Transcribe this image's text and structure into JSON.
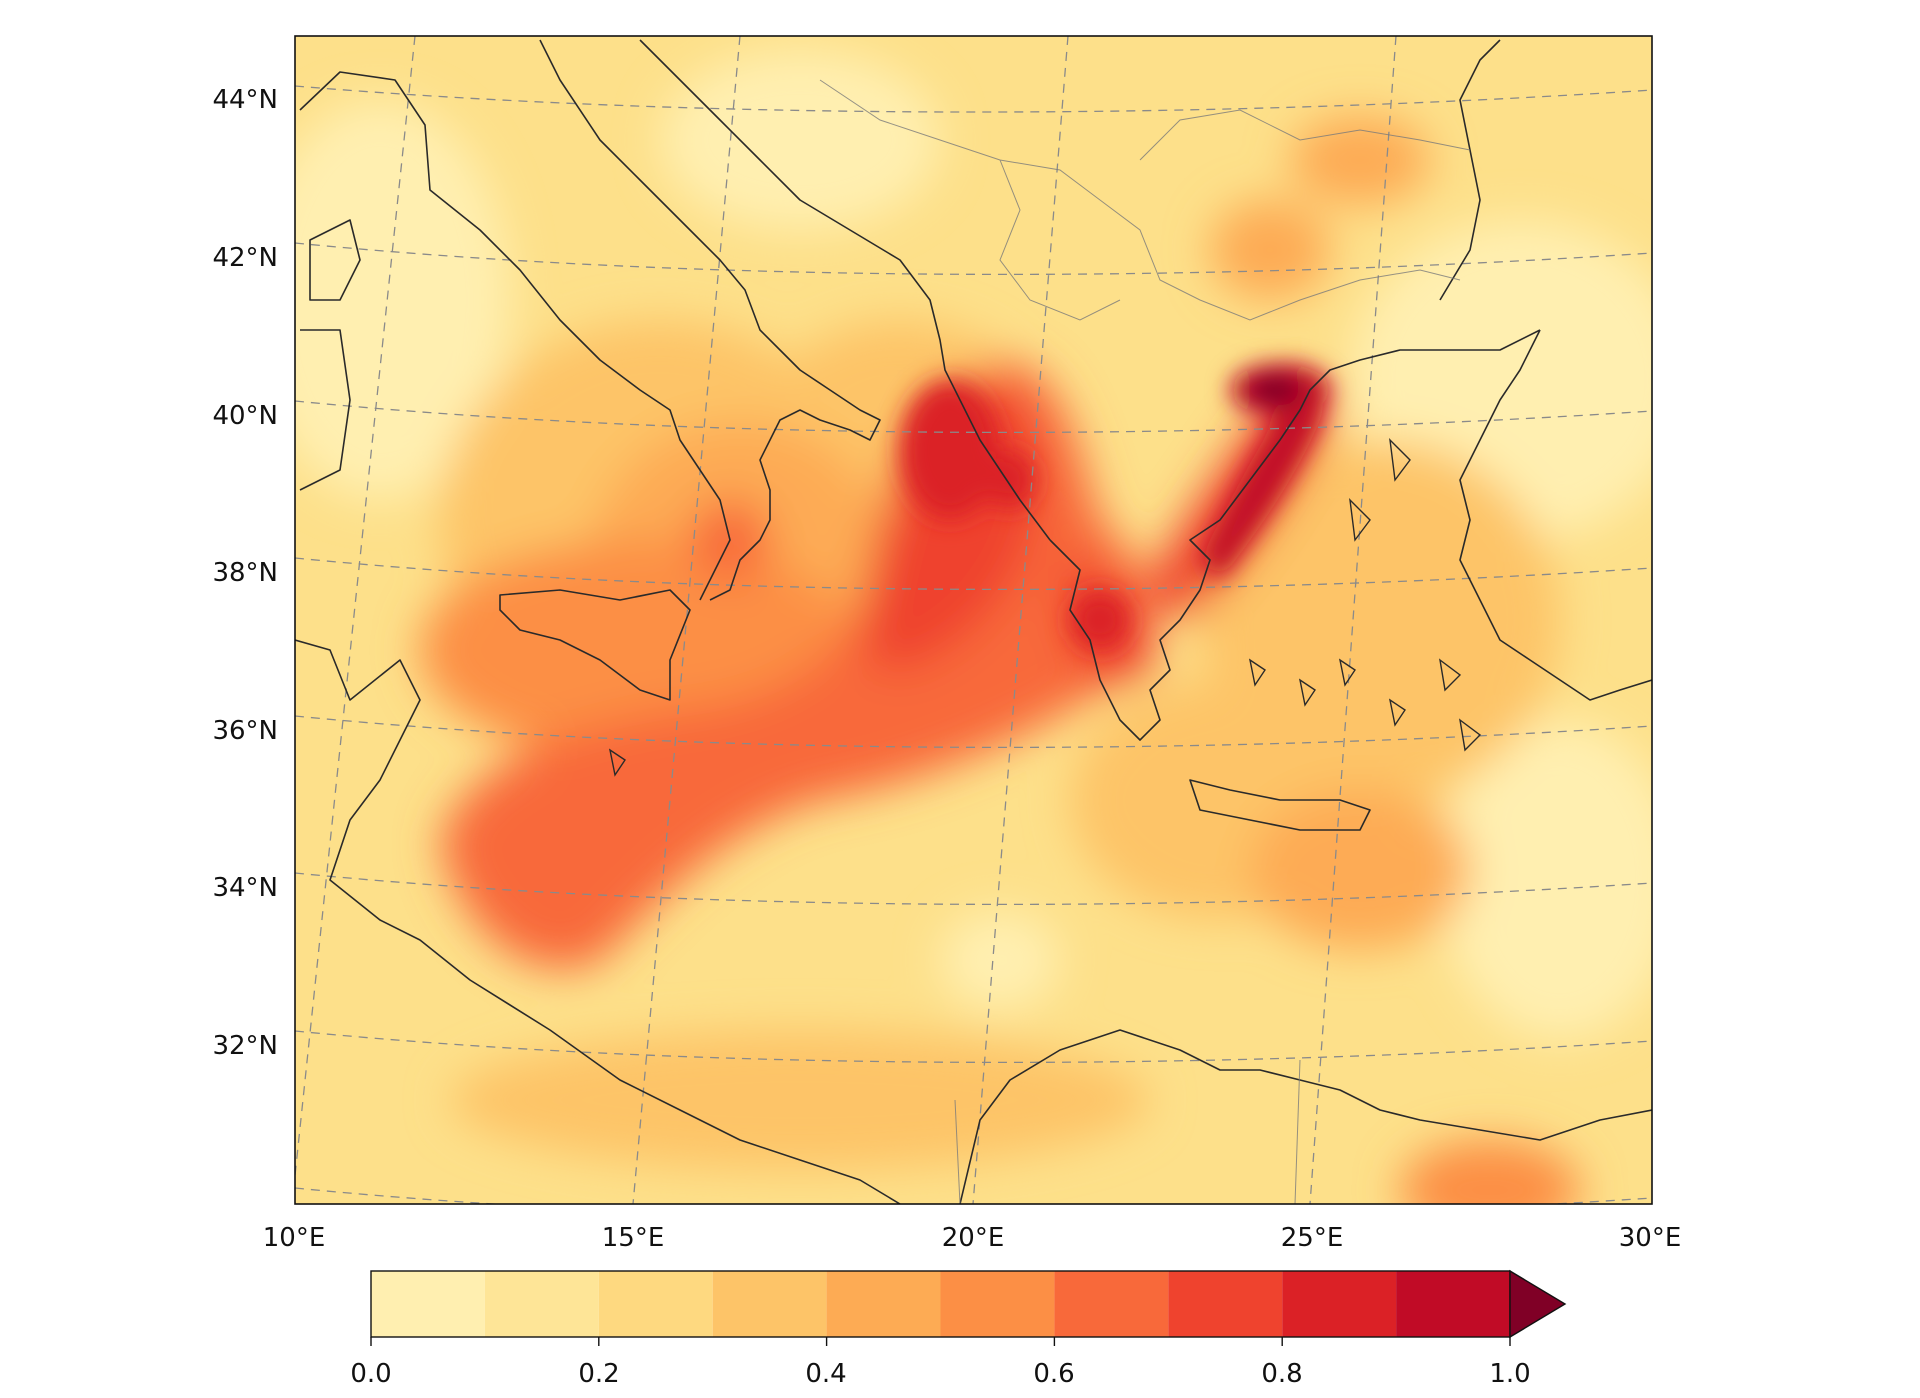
{
  "map": {
    "lat_labels": [
      "44°N",
      "42°N",
      "40°N",
      "38°N",
      "36°N",
      "34°N",
      "32°N"
    ],
    "lon_labels": [
      "10°E",
      "15°E",
      "20°E",
      "25°E",
      "30°E"
    ],
    "extent": {
      "lon": [
        10,
        30
      ],
      "lat": [
        30,
        44.8
      ]
    },
    "gridlines": true
  },
  "colorbar": {
    "tick_labels": [
      "0.0",
      "0.2",
      "0.4",
      "0.6",
      "0.8",
      "1.0"
    ],
    "min": 0.0,
    "max": 1.0,
    "extend": "max",
    "levels": [
      0.0,
      0.1,
      0.2,
      0.3,
      0.4,
      0.5,
      0.6,
      0.7,
      0.8,
      0.9,
      1.0
    ],
    "colors": [
      "#ffefb0",
      "#fee597",
      "#fed980",
      "#fdc468",
      "#fdab54",
      "#fc8f45",
      "#f8693a",
      "#ef432e",
      "#db2126",
      "#c10b26",
      "#800026"
    ]
  }
}
